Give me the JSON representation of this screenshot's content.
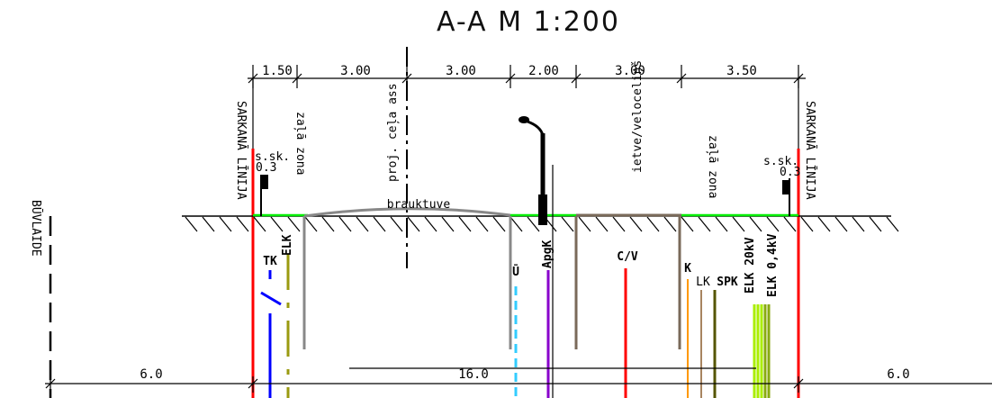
{
  "title": "A-A  M 1:200",
  "dimensions_top": [
    "1.50",
    "3.00",
    "3.00",
    "2.00",
    "3.00",
    "3.50"
  ],
  "dimensions_bottom": {
    "left": "6.0",
    "middle": "16.0",
    "right": "6.0"
  },
  "labels": {
    "red_line_left": "SARKANĀ LĪNIJA",
    "red_line_right": "SARKANĀ LĪNIJA",
    "green_zone_left": "zaļā zona",
    "green_zone_right": "zaļā zona",
    "axis": "proj. ceļa ass",
    "sidewalk": "ietve/veloceliņš",
    "roadway": "brauktuve",
    "building_line": "BŪVLAIDE",
    "sign_left": "s.sk.",
    "sign_left_value": "0.3",
    "sign_right": "s.sk.",
    "sign_right_value": "0.3"
  },
  "utilities": {
    "tk": "TK",
    "elk_left": "ELK",
    "u": "Ū",
    "apg": "ApgK",
    "cv": "C/V",
    "k": "K",
    "lk": "LK",
    "spk": "SPK",
    "elk20": "ELK 20kV",
    "elk04": "ELK 0,4kV"
  },
  "colors": {
    "red_line": "#ff0000",
    "ground_green": "#00ee00",
    "tk": "#0000ff",
    "elk": "#9a9a10",
    "u": "#33ccff",
    "apg": "#8800cc",
    "cv": "#ff0000",
    "k": "#ff9900",
    "lk": "#8b5a2b",
    "spk": "#555500",
    "elk20": "#aaee00",
    "elk04": "#88aa10",
    "road": "#888888",
    "curb": "#7a6a5a"
  }
}
